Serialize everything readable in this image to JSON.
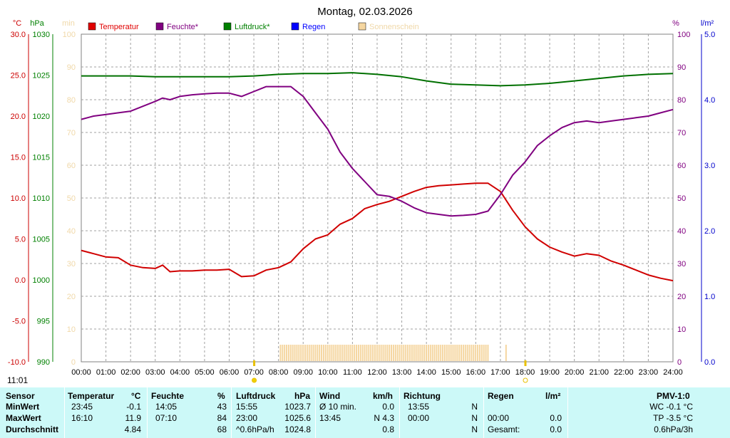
{
  "chart_data": {
    "type": "line",
    "title": "Montag, 02.03.2026",
    "x_labels": [
      "00:00",
      "01:00",
      "02:00",
      "03:00",
      "04:00",
      "05:00",
      "06:00",
      "07:00",
      "08:00",
      "09:00",
      "10:00",
      "11:00",
      "12:00",
      "13:00",
      "14:00",
      "15:00",
      "16:00",
      "17:00",
      "18:00",
      "19:00",
      "20:00",
      "21:00",
      "22:00",
      "23:00",
      "24:00"
    ],
    "axes": {
      "temperature": {
        "unit": "°C",
        "min": -10,
        "max": 30,
        "ticks": [
          "30.0",
          "25.0",
          "20.0",
          "15.0",
          "10.0",
          "5.0",
          "0.0",
          "-5.0",
          "-10.0"
        ],
        "color": "#cc0000"
      },
      "pressure": {
        "unit": "hPa",
        "min": 990,
        "max": 1030,
        "ticks": [
          "1030",
          "1025",
          "1020",
          "1015",
          "1010",
          "1005",
          "1000",
          "995",
          "990"
        ],
        "color": "#008000"
      },
      "sunshine": {
        "unit": "min",
        "min": 0,
        "max": 100,
        "ticks": [
          "100",
          "90",
          "80",
          "70",
          "60",
          "50",
          "40",
          "30",
          "20",
          "10",
          "0"
        ],
        "color": "#f5deb3"
      },
      "humidity": {
        "unit": "%",
        "min": 0,
        "max": 100,
        "ticks": [
          "100",
          "90",
          "80",
          "70",
          "60",
          "50",
          "40",
          "30",
          "20",
          "10",
          "0"
        ],
        "color": "#800080"
      },
      "rain": {
        "unit": "l/m²",
        "min": 0,
        "max": 5,
        "ticks": [
          "5.0",
          "4.0",
          "3.0",
          "2.0",
          "1.0",
          "0.0"
        ],
        "color": "#0000cc"
      }
    },
    "legend": [
      {
        "label": "Temperatur",
        "color": "#e00000"
      },
      {
        "label": "Feuchte*",
        "color": "#800080"
      },
      {
        "label": "Luftdruck*",
        "color": "#008000"
      },
      {
        "label": "Regen",
        "color": "#0000ff"
      },
      {
        "label": "Sonnenschein",
        "color": "#f5d6a0"
      }
    ],
    "series": [
      {
        "name": "Temperatur",
        "color": "#d00000",
        "axis": "temperature",
        "points": [
          [
            0,
            3.6
          ],
          [
            0.5,
            3.2
          ],
          [
            1,
            2.8
          ],
          [
            1.5,
            2.7
          ],
          [
            2,
            1.8
          ],
          [
            2.5,
            1.5
          ],
          [
            3,
            1.4
          ],
          [
            3.3,
            1.8
          ],
          [
            3.6,
            1.0
          ],
          [
            4,
            1.1
          ],
          [
            4.5,
            1.1
          ],
          [
            5,
            1.2
          ],
          [
            5.5,
            1.2
          ],
          [
            6,
            1.3
          ],
          [
            6.5,
            0.4
          ],
          [
            7,
            0.5
          ],
          [
            7.5,
            1.2
          ],
          [
            8,
            1.5
          ],
          [
            8.5,
            2.2
          ],
          [
            9,
            3.8
          ],
          [
            9.5,
            5.0
          ],
          [
            10,
            5.5
          ],
          [
            10.5,
            6.8
          ],
          [
            11,
            7.5
          ],
          [
            11.5,
            8.7
          ],
          [
            12,
            9.2
          ],
          [
            12.5,
            9.6
          ],
          [
            13,
            10.2
          ],
          [
            13.5,
            10.8
          ],
          [
            14,
            11.3
          ],
          [
            14.5,
            11.5
          ],
          [
            15,
            11.6
          ],
          [
            15.5,
            11.7
          ],
          [
            16,
            11.8
          ],
          [
            16.5,
            11.8
          ],
          [
            17,
            10.8
          ],
          [
            17.5,
            8.5
          ],
          [
            18,
            6.5
          ],
          [
            18.5,
            5.0
          ],
          [
            19,
            4.0
          ],
          [
            19.5,
            3.4
          ],
          [
            20,
            2.9
          ],
          [
            20.5,
            3.2
          ],
          [
            21,
            3.0
          ],
          [
            21.5,
            2.3
          ],
          [
            22,
            1.8
          ],
          [
            22.5,
            1.2
          ],
          [
            23,
            0.6
          ],
          [
            23.5,
            0.2
          ],
          [
            24,
            -0.1
          ]
        ]
      },
      {
        "name": "Feuchte*",
        "color": "#800080",
        "axis": "humidity",
        "points": [
          [
            0,
            74
          ],
          [
            0.5,
            75
          ],
          [
            1,
            75.5
          ],
          [
            1.5,
            76
          ],
          [
            2,
            76.5
          ],
          [
            2.5,
            78
          ],
          [
            3,
            79.5
          ],
          [
            3.3,
            80.5
          ],
          [
            3.6,
            80
          ],
          [
            4,
            81
          ],
          [
            4.5,
            81.5
          ],
          [
            5,
            81.8
          ],
          [
            5.5,
            82
          ],
          [
            6,
            82
          ],
          [
            6.5,
            81
          ],
          [
            7,
            82.5
          ],
          [
            7.5,
            84
          ],
          [
            8,
            84
          ],
          [
            8.5,
            84
          ],
          [
            9,
            81
          ],
          [
            9.5,
            76
          ],
          [
            10,
            71
          ],
          [
            10.5,
            64
          ],
          [
            11,
            59
          ],
          [
            11.5,
            55
          ],
          [
            12,
            51
          ],
          [
            12.5,
            50.5
          ],
          [
            13,
            49
          ],
          [
            13.5,
            47
          ],
          [
            14,
            45.5
          ],
          [
            14.5,
            45
          ],
          [
            15,
            44.5
          ],
          [
            15.5,
            44.7
          ],
          [
            16,
            45
          ],
          [
            16.5,
            46
          ],
          [
            17,
            51
          ],
          [
            17.5,
            57
          ],
          [
            18,
            61
          ],
          [
            18.5,
            66
          ],
          [
            19,
            69
          ],
          [
            19.5,
            71.5
          ],
          [
            20,
            73
          ],
          [
            20.5,
            73.5
          ],
          [
            21,
            73
          ],
          [
            21.5,
            73.5
          ],
          [
            22,
            74
          ],
          [
            22.5,
            74.5
          ],
          [
            23,
            75
          ],
          [
            23.5,
            76
          ],
          [
            24,
            77
          ]
        ]
      },
      {
        "name": "Luftdruck*",
        "color": "#007000",
        "axis": "pressure",
        "points": [
          [
            0,
            1024.9
          ],
          [
            2,
            1024.9
          ],
          [
            3,
            1024.8
          ],
          [
            4,
            1024.8
          ],
          [
            5,
            1024.8
          ],
          [
            6,
            1024.8
          ],
          [
            7,
            1024.9
          ],
          [
            8,
            1025.1
          ],
          [
            9,
            1025.2
          ],
          [
            10,
            1025.2
          ],
          [
            11,
            1025.3
          ],
          [
            12,
            1025.1
          ],
          [
            13,
            1024.8
          ],
          [
            14,
            1024.3
          ],
          [
            15,
            1023.9
          ],
          [
            16,
            1023.8
          ],
          [
            17,
            1023.7
          ],
          [
            18,
            1023.8
          ],
          [
            19,
            1024.0
          ],
          [
            20,
            1024.3
          ],
          [
            21,
            1024.6
          ],
          [
            22,
            1024.9
          ],
          [
            23,
            1025.1
          ],
          [
            24,
            1025.2
          ]
        ]
      }
    ],
    "sunshine_bars": {
      "color": "#f5d6a0",
      "start_hour": 8.05,
      "end_hour": 16.55,
      "value_min": 5,
      "extra": [
        {
          "hour": 17.2,
          "value_min": 5
        }
      ]
    },
    "markers": {
      "sunrise": "07:00",
      "sunset": "18:00"
    },
    "grid": true
  },
  "time_label": "11:01",
  "table": {
    "headers": {
      "sensor": "Sensor",
      "temperatur": "Temperatur",
      "temp_unit": "°C",
      "feuchte": "Feuchte",
      "feuchte_unit": "%",
      "luftdruck": "Luftdruck",
      "druck_unit": "hPa",
      "wind": "Wind",
      "wind_unit": "km/h",
      "richtung": "Richtung",
      "regen": "Regen",
      "regen_unit": "l/m²",
      "pmv": "PMV-1:0"
    },
    "rows": [
      {
        "label": "MinWert",
        "t_time": "23:45",
        "t_val": "-0.1",
        "h_time": "14:05",
        "h_val": "43",
        "p_time": "15:55",
        "p_val": "1023.7",
        "w_label": "Ø 10 min.",
        "w_val": "0.0",
        "dir_time": "13:55",
        "dir_val": "N",
        "rain_time": "",
        "rain_val": "",
        "pmv": "WC -0.1 °C"
      },
      {
        "label": "MaxWert",
        "t_time": "16:10",
        "t_val": "11.9",
        "h_time": "07:10",
        "h_val": "84",
        "p_time": "23:00",
        "p_val": "1025.6",
        "w_label": "13:45",
        "w_val": "N 4.3",
        "dir_time": "00:00",
        "dir_val": "N",
        "rain_time": "00:00",
        "rain_val": "0.0",
        "pmv": "TP -3.5 °C"
      },
      {
        "label": "Durchschnitt",
        "t_time": "",
        "t_val": "4.84",
        "h_time": "",
        "h_val": "68",
        "p_time": "^0.6hPa/h",
        "p_val": "1024.8",
        "w_label": "",
        "w_val": "0.8",
        "dir_time": "",
        "dir_val": "N",
        "rain_time": "Gesamt:",
        "rain_val": "0.0",
        "pmv": "0.6hPa/3h"
      }
    ]
  }
}
